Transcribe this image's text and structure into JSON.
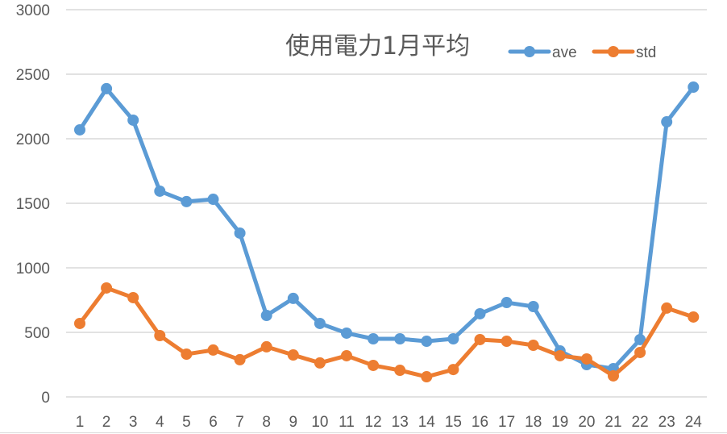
{
  "chart_data": {
    "type": "line",
    "title": "使用電力1月平均",
    "xlabel": "",
    "ylabel": "",
    "ylim": [
      0,
      3000
    ],
    "yticks": [
      0,
      500,
      1000,
      1500,
      2000,
      2500,
      3000
    ],
    "grid": true,
    "legend_position": "top-right (inline with title)",
    "categories": [
      "1",
      "2",
      "3",
      "4",
      "5",
      "6",
      "7",
      "8",
      "9",
      "10",
      "11",
      "12",
      "13",
      "14",
      "15",
      "16",
      "17",
      "18",
      "19",
      "20",
      "21",
      "22",
      "23",
      "24"
    ],
    "series": [
      {
        "name": "ave",
        "color": "#5b9bd5",
        "values": [
          2069,
          2388,
          2144,
          1594,
          1513,
          1531,
          1269,
          631,
          763,
          569,
          494,
          450,
          450,
          431,
          450,
          644,
          731,
          700,
          356,
          250,
          219,
          444,
          2131,
          2400
        ]
      },
      {
        "name": "std",
        "color": "#ed7d31",
        "values": [
          569,
          844,
          769,
          475,
          331,
          363,
          288,
          388,
          325,
          263,
          319,
          244,
          206,
          156,
          212,
          444,
          431,
          400,
          319,
          294,
          163,
          344,
          688,
          619
        ]
      }
    ]
  },
  "colors": {
    "gridline": "#d9d9d9",
    "text": "#595959",
    "background": "#ffffff"
  }
}
